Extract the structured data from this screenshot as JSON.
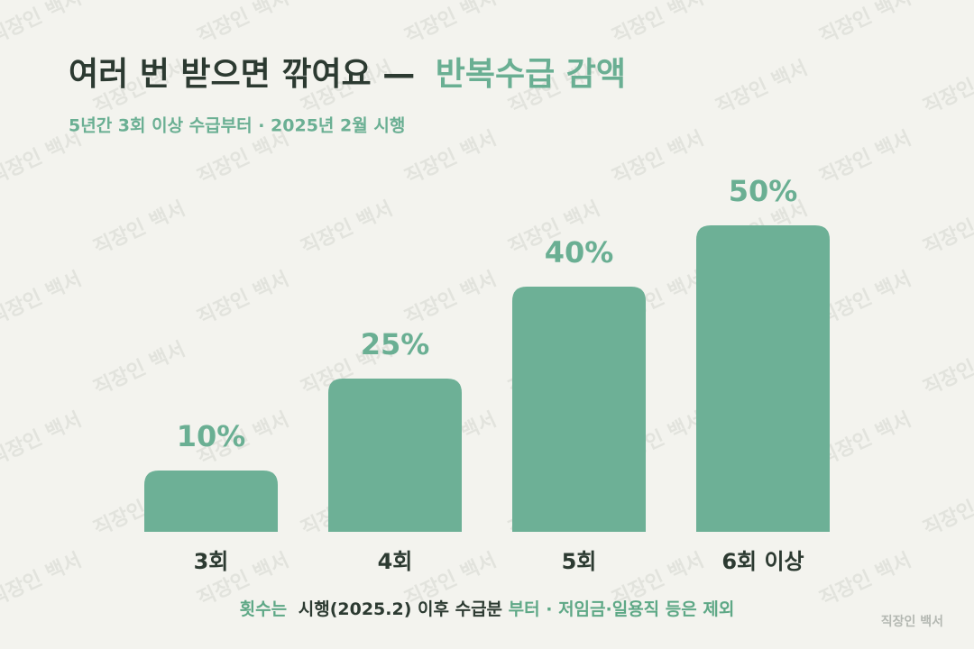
{
  "chart_data": {
    "type": "bar",
    "title_parts": [
      {
        "text": "여러 번 받으면 깎여요 —",
        "color": "#2c3a31"
      },
      {
        "text": "반복수급 감액",
        "color": "#6aaf93"
      }
    ],
    "subtitle": "5년간 3회 이상 수급부터 · 2025년 2월 시행",
    "categories": [
      "3회",
      "4회",
      "5회",
      "6회 이상"
    ],
    "values": [
      10,
      25,
      40,
      50
    ],
    "value_labels": [
      "10%",
      "25%",
      "40%",
      "50%"
    ],
    "color": "#6db096",
    "footnote_parts": [
      {
        "text": "횟수는",
        "color": "#5ea886"
      },
      {
        "text": "시행(2025.2) 이후 수급분",
        "color": "#2c3a31"
      },
      {
        "text": "부터 · 저임금·일용직 등은 제외",
        "color": "#5ea886"
      }
    ],
    "watermark": "직장인 백서"
  }
}
